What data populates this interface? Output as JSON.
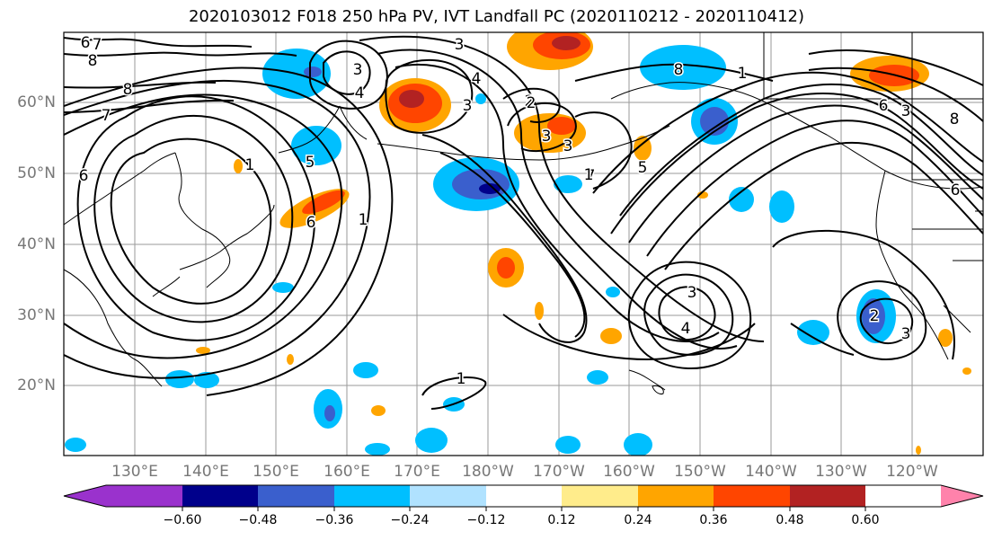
{
  "title": "2020103012 F018 250 hPa PV, IVT Landfall PC (2020110212 - 2020110412)",
  "lat_labels": [
    "60°N",
    "50°N",
    "40°N",
    "30°N",
    "20°N"
  ],
  "lon_labels": [
    "130°E",
    "140°E",
    "150°E",
    "160°E",
    "170°E",
    "180°W",
    "170°W",
    "160°W",
    "150°W",
    "140°W",
    "130°W",
    "120°W"
  ],
  "colorbar": {
    "colors": [
      "#9a32cd",
      "#00008b",
      "#3a5fcd",
      "#00bfff",
      "#b0e2ff",
      "#ffffff",
      "#ffec8b",
      "#ffa500",
      "#ff4500",
      "#b22222",
      "#ff82ab"
    ],
    "tick_labels": [
      "−0.60",
      "−0.48",
      "−0.36",
      "−0.24",
      "−0.12",
      "0.12",
      "0.24",
      "0.36",
      "0.48",
      "0.60"
    ]
  },
  "contour_labels": [
    "6",
    "7",
    "8",
    "8",
    "7",
    "6",
    "3",
    "3",
    "4",
    "3",
    "2",
    "1",
    "1",
    "6",
    "2",
    "3",
    "3",
    "7",
    "8",
    "1",
    "2",
    "3",
    "4",
    "5",
    "6",
    "8",
    "6",
    "3",
    "3",
    "4",
    "1",
    "1",
    "5",
    "7"
  ],
  "colors": {
    "land_outline": "#000000",
    "grid": "#9a9a9a",
    "contour": "#000000",
    "axis_label": "#777777"
  }
}
